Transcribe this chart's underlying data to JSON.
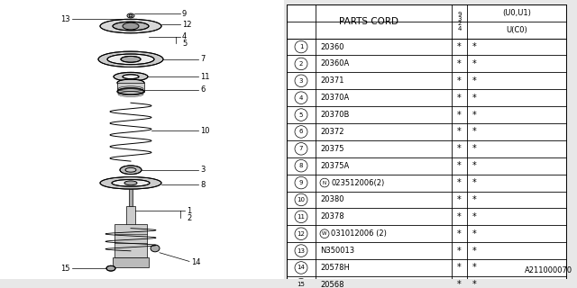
{
  "watermark": "A211000070",
  "table_header_parts": "PARTS CORD",
  "narrow_col_header": "9\n3\n2\n4",
  "wide_col_header_top": "(U0,U1)",
  "wide_col_header_bot": "U(C0)",
  "rows": [
    {
      "num": "1",
      "code": "20360",
      "special": null
    },
    {
      "num": "2",
      "code": "20360A",
      "special": null
    },
    {
      "num": "3",
      "code": "20371",
      "special": null
    },
    {
      "num": "4",
      "code": "20370A",
      "special": null
    },
    {
      "num": "5",
      "code": "20370B",
      "special": null
    },
    {
      "num": "6",
      "code": "20372",
      "special": null
    },
    {
      "num": "7",
      "code": "20375",
      "special": null
    },
    {
      "num": "8",
      "code": "20375A",
      "special": null
    },
    {
      "num": "9",
      "code": "023512006(2)",
      "special": "N"
    },
    {
      "num": "10",
      "code": "20380",
      "special": null
    },
    {
      "num": "11",
      "code": "20378",
      "special": null
    },
    {
      "num": "12",
      "code": "031012006 (2)",
      "special": "W"
    },
    {
      "num": "13",
      "code": "N350013",
      "special": null
    },
    {
      "num": "14",
      "code": "20578H",
      "special": null
    },
    {
      "num": "15",
      "code": "20568",
      "special": null
    }
  ],
  "bg_color": "#e8e8e8",
  "table_bg": "#ffffff",
  "lc": "#000000",
  "star": "*"
}
